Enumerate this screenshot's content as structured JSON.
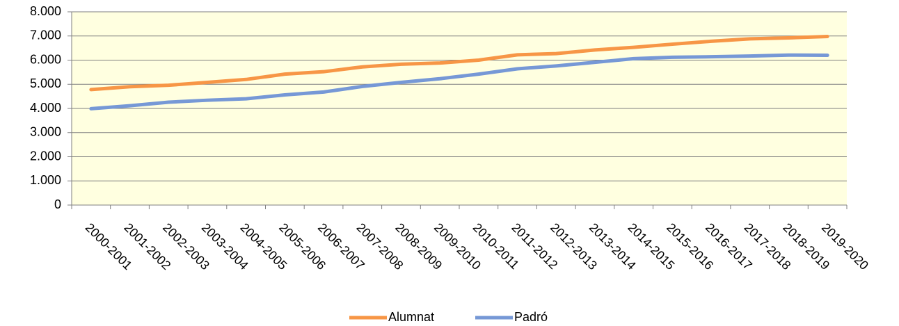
{
  "chart_data": {
    "type": "line",
    "categories": [
      "2000-2001",
      "2001-2002",
      "2002-2003",
      "2003-2004",
      "2004-2005",
      "2005-2006",
      "2006-2007",
      "2007-2008",
      "2008-2009",
      "2009-2010",
      "2010-2011",
      "2011-2012",
      "2012-2013",
      "2013-2014",
      "2014-2015",
      "2015-2016",
      "2016-2017",
      "2017-2018",
      "2018-2019",
      "2019-2020"
    ],
    "series": [
      {
        "name": "Alumnat",
        "color": "#f79646",
        "values": [
          4780,
          4900,
          4960,
          5080,
          5200,
          5420,
          5520,
          5720,
          5830,
          5880,
          6000,
          6220,
          6270,
          6420,
          6530,
          6660,
          6780,
          6880,
          6920,
          6980
        ]
      },
      {
        "name": "Padró",
        "color": "#7698d6",
        "values": [
          3990,
          4110,
          4260,
          4340,
          4400,
          4560,
          4680,
          4910,
          5080,
          5230,
          5420,
          5640,
          5760,
          5910,
          6060,
          6120,
          6140,
          6170,
          6210,
          6200
        ]
      }
    ],
    "ylim": [
      0,
      8000
    ],
    "yticks": [
      0,
      {
        "value": 1000,
        "label": "1.000"
      },
      {
        "value": 2000,
        "label": "2.000"
      },
      {
        "value": 3000,
        "label": "3.000"
      },
      {
        "value": 4000,
        "label": "4.000"
      },
      {
        "value": 5000,
        "label": "5.000"
      },
      {
        "value": 6000,
        "label": "6.000"
      },
      {
        "value": 7000,
        "label": "7.000"
      },
      {
        "value": 8000,
        "label": "8.000"
      }
    ],
    "grid": true,
    "legend": "bottom",
    "background": "#ffffe0"
  }
}
